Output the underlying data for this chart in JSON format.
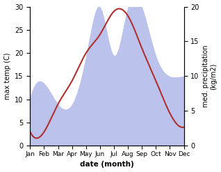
{
  "months": [
    "Jan",
    "Feb",
    "Mar",
    "Apr",
    "May",
    "Jun",
    "Jul",
    "Aug",
    "Sep",
    "Oct",
    "Nov",
    "Dec"
  ],
  "temperature": [
    3.0,
    3.0,
    9.0,
    14.0,
    20.0,
    24.0,
    29.0,
    28.0,
    21.0,
    14.0,
    7.0,
    4.0
  ],
  "precipitation": [
    7.0,
    9.0,
    6.0,
    6.0,
    13.0,
    20.0,
    13.0,
    20.0,
    20.0,
    13.0,
    10.0,
    10.0
  ],
  "temp_color": "#b03030",
  "precip_color": "#b0b8e8",
  "temp_ylim": [
    0,
    30
  ],
  "precip_ylim": [
    0,
    20
  ],
  "xlabel": "date (month)",
  "ylabel_left": "max temp (C)",
  "ylabel_right": "med. precipitation\n(kg/m2)",
  "background_color": "#ffffff",
  "fig_width": 3.18,
  "fig_height": 2.47,
  "dpi": 100
}
